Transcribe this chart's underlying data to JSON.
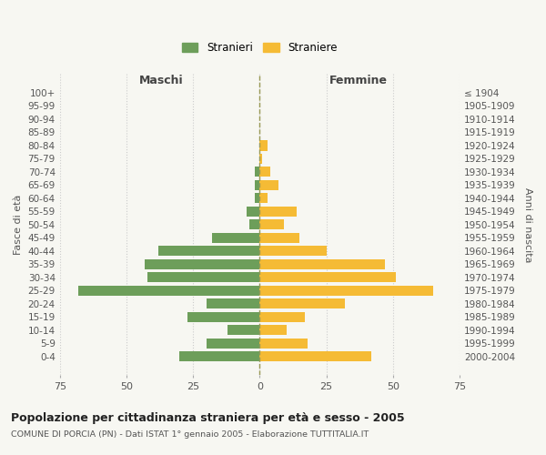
{
  "age_groups": [
    "0-4",
    "5-9",
    "10-14",
    "15-19",
    "20-24",
    "25-29",
    "30-34",
    "35-39",
    "40-44",
    "45-49",
    "50-54",
    "55-59",
    "60-64",
    "65-69",
    "70-74",
    "75-79",
    "80-84",
    "85-89",
    "90-94",
    "95-99",
    "100+"
  ],
  "birth_years": [
    "2000-2004",
    "1995-1999",
    "1990-1994",
    "1985-1989",
    "1980-1984",
    "1975-1979",
    "1970-1974",
    "1965-1969",
    "1960-1964",
    "1955-1959",
    "1950-1954",
    "1945-1949",
    "1940-1944",
    "1935-1939",
    "1930-1934",
    "1925-1929",
    "1920-1924",
    "1915-1919",
    "1910-1914",
    "1905-1909",
    "≤ 1904"
  ],
  "maschi": [
    30,
    20,
    12,
    27,
    20,
    68,
    42,
    43,
    38,
    18,
    4,
    5,
    2,
    2,
    2,
    0,
    0,
    0,
    0,
    0,
    0
  ],
  "femmine": [
    42,
    18,
    10,
    17,
    32,
    65,
    51,
    47,
    25,
    15,
    9,
    14,
    3,
    7,
    4,
    1,
    3,
    0,
    0,
    0,
    0
  ],
  "color_maschi": "#6d9e5a",
  "color_femmine": "#f5bb35",
  "title": "Popolazione per cittadinanza straniera per età e sesso - 2005",
  "subtitle": "COMUNE DI PORCIA (PN) - Dati ISTAT 1° gennaio 2005 - Elaborazione TUTTITALIA.IT",
  "label_maschi": "Maschi",
  "label_femmine": "Femmine",
  "ylabel_left": "Fasce di età",
  "ylabel_right": "Anni di nascita",
  "legend_maschi": "Stranieri",
  "legend_femmine": "Straniere",
  "xlim": 75,
  "background_color": "#f7f7f2",
  "grid_color": "#cccccc"
}
